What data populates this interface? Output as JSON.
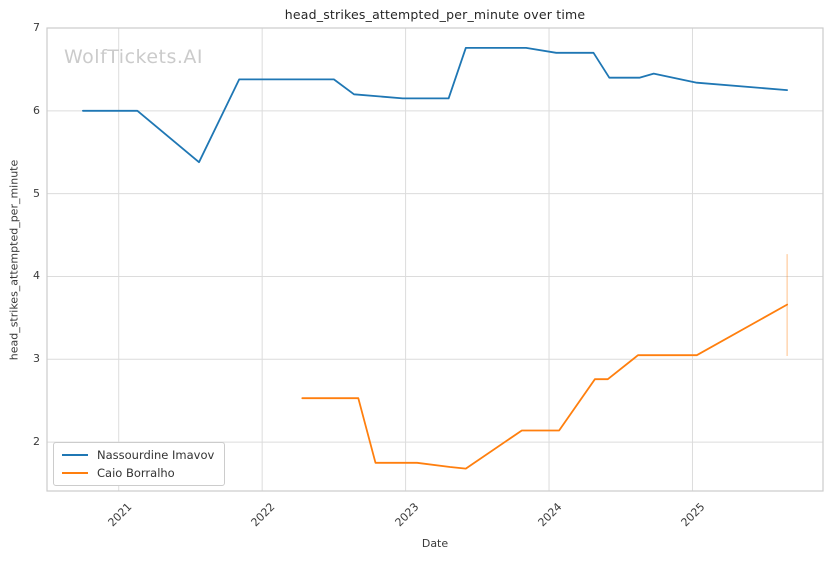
{
  "page": {
    "watermark": "WolfTickets.AI"
  },
  "chart_data": {
    "type": "line",
    "title": "head_strikes_attempted_per_minute over time",
    "xlabel": "Date",
    "ylabel": "head_strikes_attempted_per_minute",
    "xlim": [
      2020.5,
      2025.91
    ],
    "ylim": [
      1.41,
      7.0
    ],
    "x_ticks": [
      2021,
      2022,
      2023,
      2024,
      2025
    ],
    "y_ticks": [
      2,
      3,
      4,
      5,
      6,
      7
    ],
    "grid": true,
    "legend_position": "lower-left",
    "series": [
      {
        "name": "Nassourdine Imavov",
        "color": "#1f77b4",
        "x": [
          2020.75,
          2021.13,
          2021.56,
          2021.84,
          2022.5,
          2022.64,
          2022.98,
          2023.3,
          2023.42,
          2023.84,
          2024.05,
          2024.31,
          2024.42,
          2024.63,
          2024.73,
          2025.03,
          2025.66
        ],
        "y": [
          6.0,
          6.0,
          5.38,
          6.38,
          6.38,
          6.2,
          6.15,
          6.15,
          6.76,
          6.76,
          6.7,
          6.7,
          6.4,
          6.4,
          6.45,
          6.34,
          6.25
        ]
      },
      {
        "name": "Caio Borralho",
        "color": "#ff7f0e",
        "x": [
          2022.28,
          2022.67,
          2022.79,
          2023.08,
          2023.31,
          2023.42,
          2023.81,
          2024.07,
          2024.32,
          2024.41,
          2024.62,
          2025.03,
          2025.66
        ],
        "y": [
          2.53,
          2.53,
          1.75,
          1.75,
          1.7,
          1.68,
          2.14,
          2.14,
          2.76,
          2.76,
          3.05,
          3.05,
          3.66
        ],
        "error_bar": {
          "x": 2025.66,
          "y_low": 3.04,
          "y_high": 4.27
        }
      }
    ]
  },
  "colors": {
    "grid": "#dcdcdc",
    "spine": "#cccccc",
    "tick_text": "#3a3a3a",
    "title_text": "#262626",
    "watermark": "#cbcbcb",
    "background": "#ffffff"
  }
}
